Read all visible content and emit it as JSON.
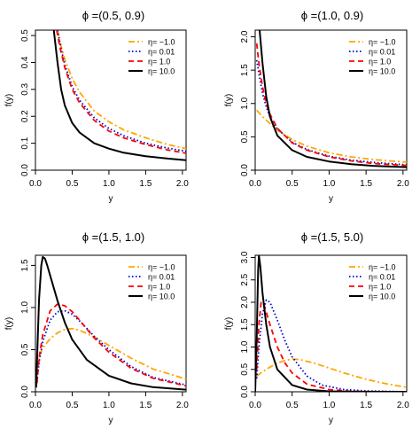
{
  "chart_data": [
    {
      "type": "line",
      "title": "ϕ =(0.5, 0.9)",
      "xlabel": "y",
      "ylabel": "f(y)",
      "xlim": [
        0.0,
        2.05
      ],
      "ylim": [
        0.0,
        0.52
      ],
      "xticks": [
        "0.0",
        "0.5",
        "1.0",
        "1.5",
        "2.0"
      ],
      "xtick_values": [
        0.0,
        0.5,
        1.0,
        1.5,
        2.0
      ],
      "yticks": [
        "0.0",
        "0.1",
        "0.2",
        "0.3",
        "0.4",
        "0.5"
      ],
      "ytick_values": [
        0.0,
        0.1,
        0.2,
        0.3,
        0.4,
        0.5
      ],
      "legend_position": "top-right",
      "grid": false,
      "series": [
        {
          "name": "η= −1.0",
          "color": "#FFA500",
          "style": "dashdot",
          "x": [
            0.3,
            0.35,
            0.4,
            0.5,
            0.6,
            0.8,
            1.0,
            1.2,
            1.5,
            1.8,
            2.05
          ],
          "y": [
            0.52,
            0.46,
            0.41,
            0.34,
            0.29,
            0.22,
            0.18,
            0.15,
            0.12,
            0.095,
            0.08
          ]
        },
        {
          "name": "η= 0.01",
          "color": "#0000CD",
          "style": "dotted",
          "x": [
            0.3,
            0.35,
            0.4,
            0.5,
            0.6,
            0.8,
            1.0,
            1.2,
            1.5,
            1.8,
            2.05
          ],
          "y": [
            0.52,
            0.45,
            0.39,
            0.31,
            0.26,
            0.195,
            0.155,
            0.128,
            0.1,
            0.082,
            0.07
          ]
        },
        {
          "name": "η= 1.0",
          "color": "#FF0000",
          "style": "dashed",
          "x": [
            0.29,
            0.33,
            0.4,
            0.5,
            0.6,
            0.8,
            1.0,
            1.2,
            1.5,
            1.8,
            2.05
          ],
          "y": [
            0.52,
            0.46,
            0.38,
            0.3,
            0.25,
            0.185,
            0.145,
            0.12,
            0.095,
            0.075,
            0.063
          ]
        },
        {
          "name": "η= 10.0",
          "color": "#000000",
          "style": "solid",
          "x": [
            0.25,
            0.3,
            0.35,
            0.4,
            0.5,
            0.6,
            0.8,
            1.0,
            1.2,
            1.5,
            1.8,
            2.05
          ],
          "y": [
            0.52,
            0.4,
            0.3,
            0.24,
            0.175,
            0.14,
            0.1,
            0.08,
            0.065,
            0.052,
            0.043,
            0.037
          ]
        }
      ]
    },
    {
      "type": "line",
      "title": "ϕ =(1.0, 0.9)",
      "xlabel": "y",
      "ylabel": "f(y)",
      "xlim": [
        0.0,
        2.05
      ],
      "ylim": [
        0.0,
        2.1
      ],
      "xticks": [
        "0.0",
        "0.5",
        "1.0",
        "1.5",
        "2.0"
      ],
      "xtick_values": [
        0.0,
        0.5,
        1.0,
        1.5,
        2.0
      ],
      "yticks": [
        "0.0",
        "0.5",
        "1.0",
        "1.5",
        "2.0"
      ],
      "ytick_values": [
        0.0,
        0.5,
        1.0,
        1.5,
        2.0
      ],
      "legend_position": "top-right",
      "grid": false,
      "series": [
        {
          "name": "η= −1.0",
          "color": "#FFA500",
          "style": "dashdot",
          "x": [
            0.02,
            0.1,
            0.2,
            0.3,
            0.5,
            0.7,
            1.0,
            1.3,
            1.6,
            2.05
          ],
          "y": [
            0.9,
            0.8,
            0.7,
            0.6,
            0.46,
            0.36,
            0.26,
            0.2,
            0.16,
            0.12
          ]
        },
        {
          "name": "η= 0.01",
          "color": "#0000CD",
          "style": "dotted",
          "x": [
            0.02,
            0.05,
            0.1,
            0.15,
            0.2,
            0.3,
            0.5,
            0.7,
            1.0,
            1.3,
            1.6,
            2.05
          ],
          "y": [
            1.65,
            1.45,
            1.15,
            0.95,
            0.8,
            0.62,
            0.42,
            0.31,
            0.21,
            0.15,
            0.115,
            0.08
          ]
        },
        {
          "name": "η= 1.0",
          "color": "#FF0000",
          "style": "dashed",
          "x": [
            0.02,
            0.05,
            0.1,
            0.15,
            0.2,
            0.3,
            0.5,
            0.7,
            1.0,
            1.3,
            1.6,
            2.05
          ],
          "y": [
            1.9,
            1.6,
            1.25,
            1.0,
            0.84,
            0.63,
            0.41,
            0.3,
            0.2,
            0.14,
            0.1,
            0.07
          ]
        },
        {
          "name": "η= 10.0",
          "color": "#000000",
          "style": "solid",
          "x": [
            0.06,
            0.1,
            0.15,
            0.2,
            0.3,
            0.5,
            0.7,
            1.0,
            1.3,
            1.6,
            2.05
          ],
          "y": [
            2.1,
            1.6,
            1.1,
            0.8,
            0.52,
            0.3,
            0.2,
            0.13,
            0.09,
            0.065,
            0.045
          ]
        }
      ]
    },
    {
      "type": "line",
      "title": "ϕ =(1.5, 1.0)",
      "xlabel": "y",
      "ylabel": "f(y)",
      "xlim": [
        0.0,
        2.05
      ],
      "ylim": [
        0.0,
        1.62
      ],
      "xticks": [
        "0.0",
        "0.5",
        "1.0",
        "1.5",
        "2.0"
      ],
      "xtick_values": [
        0.0,
        0.5,
        1.0,
        1.5,
        2.0
      ],
      "yticks": [
        "0.0",
        "0.5",
        "1.0",
        "1.5"
      ],
      "ytick_values": [
        0.0,
        0.5,
        1.0,
        1.5
      ],
      "legend_position": "top-right",
      "grid": false,
      "series": [
        {
          "name": "η= −1.0",
          "color": "#FFA500",
          "style": "dashdot",
          "x": [
            0.02,
            0.05,
            0.1,
            0.2,
            0.3,
            0.4,
            0.5,
            0.6,
            0.8,
            1.0,
            1.3,
            1.6,
            2.05
          ],
          "y": [
            0.28,
            0.42,
            0.52,
            0.63,
            0.7,
            0.74,
            0.75,
            0.73,
            0.65,
            0.55,
            0.4,
            0.27,
            0.15
          ]
        },
        {
          "name": "η= 0.01",
          "color": "#0000CD",
          "style": "dotted",
          "x": [
            0.02,
            0.05,
            0.1,
            0.2,
            0.3,
            0.4,
            0.5,
            0.6,
            0.8,
            1.0,
            1.3,
            1.6,
            2.05
          ],
          "y": [
            0.12,
            0.35,
            0.6,
            0.85,
            0.95,
            0.96,
            0.92,
            0.84,
            0.66,
            0.5,
            0.3,
            0.17,
            0.08
          ]
        },
        {
          "name": "η= 1.0",
          "color": "#FF0000",
          "style": "dashed",
          "x": [
            0.02,
            0.05,
            0.1,
            0.2,
            0.3,
            0.4,
            0.5,
            0.6,
            0.8,
            1.0,
            1.3,
            1.6,
            2.05
          ],
          "y": [
            0.1,
            0.4,
            0.68,
            0.96,
            1.04,
            1.02,
            0.95,
            0.85,
            0.64,
            0.47,
            0.28,
            0.16,
            0.07
          ]
        },
        {
          "name": "η= 10.0",
          "color": "#000000",
          "style": "solid",
          "x": [
            0.01,
            0.03,
            0.05,
            0.08,
            0.1,
            0.13,
            0.16,
            0.2,
            0.3,
            0.4,
            0.5,
            0.7,
            1.0,
            1.3,
            1.6,
            2.05
          ],
          "y": [
            0.05,
            0.6,
            1.1,
            1.5,
            1.6,
            1.58,
            1.5,
            1.38,
            1.08,
            0.82,
            0.62,
            0.38,
            0.19,
            0.1,
            0.055,
            0.025
          ]
        }
      ]
    },
    {
      "type": "line",
      "title": "ϕ =(1.5, 5.0)",
      "xlabel": "y",
      "ylabel": "f(y)",
      "xlim": [
        0.0,
        2.05
      ],
      "ylim": [
        0.0,
        3.05
      ],
      "xticks": [
        "0.0",
        "0.5",
        "1.0",
        "1.5",
        "2.0"
      ],
      "xtick_values": [
        0.0,
        0.5,
        1.0,
        1.5,
        2.0
      ],
      "yticks": [
        "0.0",
        "0.5",
        "1.0",
        "1.5",
        "2.0",
        "2.5",
        "3.0"
      ],
      "ytick_values": [
        0.0,
        0.5,
        1.0,
        1.5,
        2.0,
        2.5,
        3.0
      ],
      "legend_position": "top-right",
      "grid": false,
      "series": [
        {
          "name": "η= −1.0",
          "color": "#FFA500",
          "style": "dashdot",
          "x": [
            0.02,
            0.1,
            0.2,
            0.3,
            0.4,
            0.5,
            0.6,
            0.8,
            1.0,
            1.2,
            1.5,
            1.8,
            2.05
          ],
          "y": [
            0.35,
            0.45,
            0.55,
            0.64,
            0.7,
            0.73,
            0.72,
            0.64,
            0.53,
            0.42,
            0.28,
            0.17,
            0.1
          ]
        },
        {
          "name": "η= 0.01",
          "color": "#0000CD",
          "style": "dotted",
          "x": [
            0.02,
            0.05,
            0.1,
            0.15,
            0.2,
            0.3,
            0.4,
            0.5,
            0.7,
            0.9,
            1.2,
            1.5,
            2.05
          ],
          "y": [
            0.3,
            1.0,
            1.75,
            2.05,
            2.0,
            1.6,
            1.15,
            0.78,
            0.35,
            0.15,
            0.05,
            0.02,
            0.0
          ]
        },
        {
          "name": "η= 1.0",
          "color": "#FF0000",
          "style": "dashed",
          "x": [
            0.02,
            0.05,
            0.08,
            0.1,
            0.13,
            0.2,
            0.3,
            0.4,
            0.5,
            0.7,
            1.0,
            1.3,
            2.05
          ],
          "y": [
            0.5,
            1.5,
            2.0,
            2.0,
            1.9,
            1.5,
            1.0,
            0.65,
            0.42,
            0.17,
            0.05,
            0.01,
            0.0
          ]
        },
        {
          "name": "η= 10.0",
          "color": "#000000",
          "style": "solid",
          "x": [
            0.0,
            0.02,
            0.04,
            0.05,
            0.07,
            0.1,
            0.15,
            0.2,
            0.3,
            0.5,
            0.7,
            1.0,
            1.5,
            2.05
          ],
          "y": [
            0.0,
            1.2,
            2.7,
            3.05,
            2.8,
            2.2,
            1.5,
            1.0,
            0.5,
            0.15,
            0.05,
            0.01,
            0.0,
            0.0
          ]
        }
      ]
    }
  ]
}
